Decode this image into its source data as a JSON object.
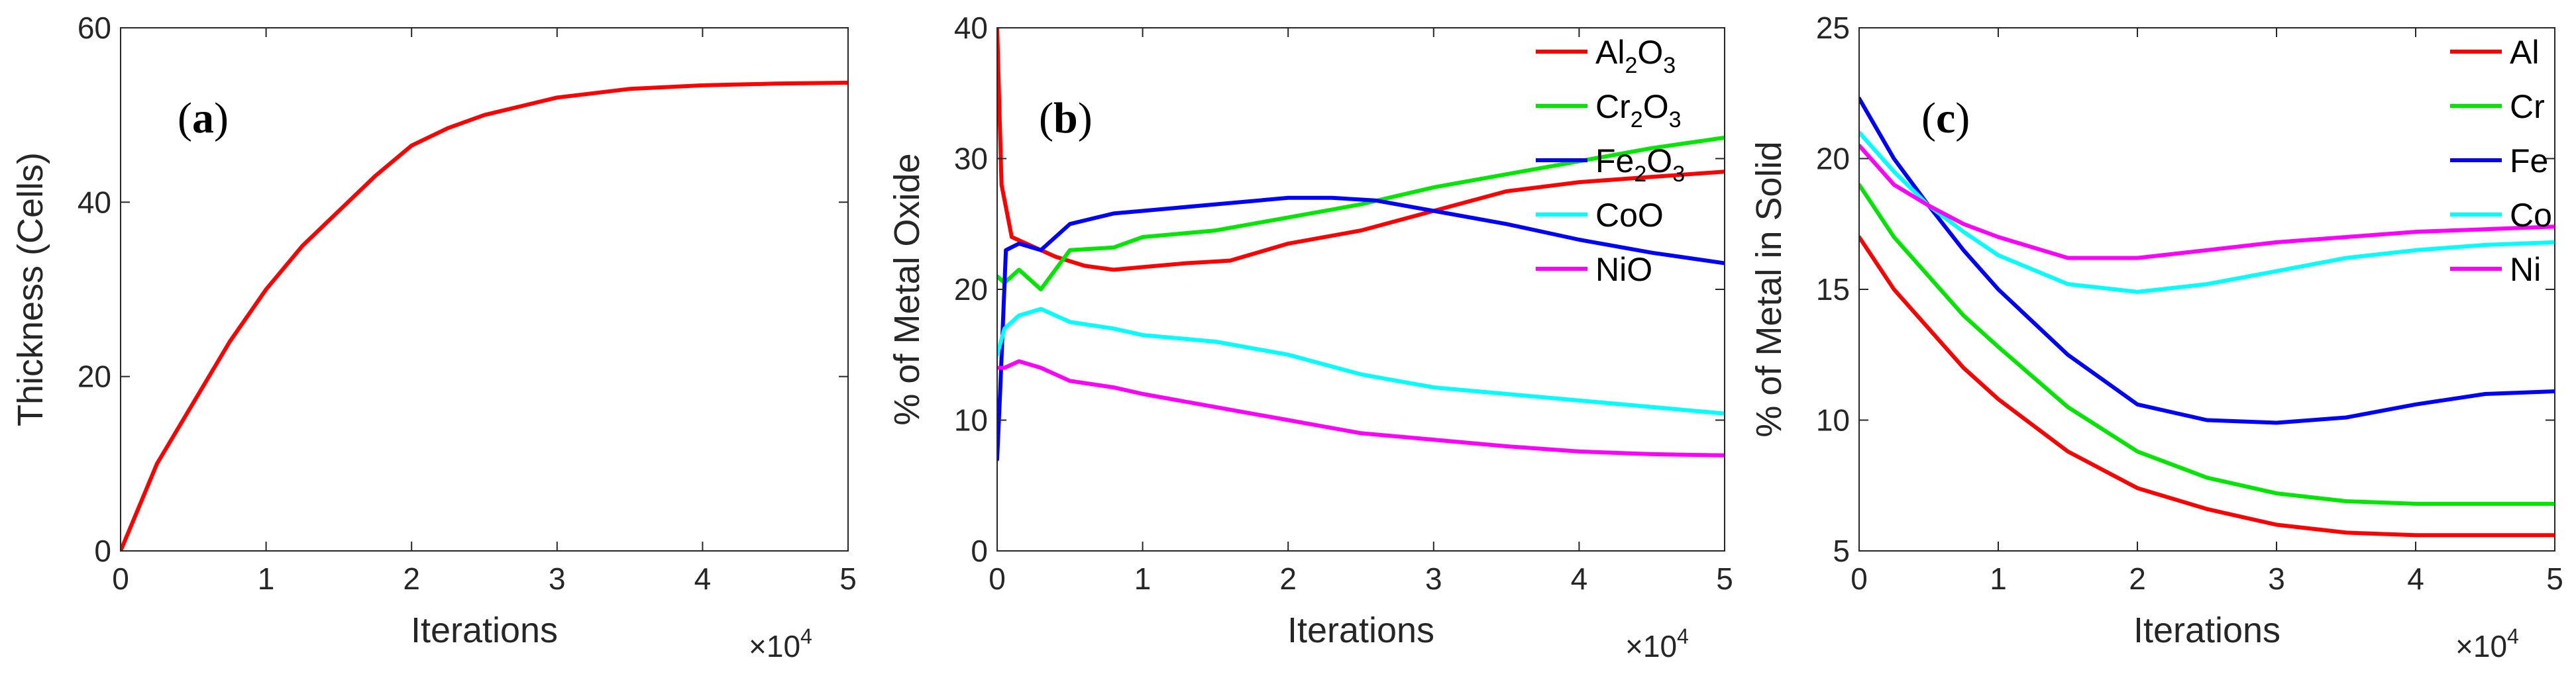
{
  "chart_data": [
    {
      "type": "line",
      "panel_label": "a",
      "title": "",
      "xlabel": "Iterations",
      "ylabel": "Thickness (Cells)",
      "x_exponent": {
        "base": "×10",
        "power": "4"
      },
      "xlim": [
        0,
        5
      ],
      "ylim": [
        0,
        60
      ],
      "x_ticks": [
        0,
        1,
        2,
        3,
        4,
        5
      ],
      "y_ticks": [
        0,
        20,
        40,
        60
      ],
      "legend": [],
      "series": [
        {
          "name": "Thickness",
          "color": "#ff0000",
          "x": [
            0,
            0.1,
            0.25,
            0.5,
            0.75,
            1.0,
            1.25,
            1.5,
            1.75,
            2.0,
            2.25,
            2.5,
            2.75,
            3.0,
            3.25,
            3.5,
            4.0,
            4.5,
            5.0
          ],
          "y": [
            0,
            4,
            10,
            17,
            24,
            30,
            35,
            39,
            43,
            46.5,
            48.5,
            50,
            51,
            52,
            52.5,
            53,
            53.4,
            53.6,
            53.7
          ]
        }
      ]
    },
    {
      "type": "line",
      "panel_label": "b",
      "title": "",
      "xlabel": "Iterations",
      "ylabel": "% of Metal Oxide",
      "x_exponent": {
        "base": "×10",
        "power": "4"
      },
      "xlim": [
        0,
        5
      ],
      "ylim": [
        0,
        40
      ],
      "x_ticks": [
        0,
        1,
        2,
        3,
        4,
        5
      ],
      "y_ticks": [
        0,
        10,
        20,
        30,
        40
      ],
      "legend": [
        {
          "text": "Al",
          "sub1": "2",
          "text2": "O",
          "sub2": "3",
          "color": "#ff0000"
        },
        {
          "text": "Cr",
          "sub1": "2",
          "text2": "O",
          "sub2": "3",
          "color": "#00e600"
        },
        {
          "text": "Fe",
          "sub1": "2",
          "text2": "O",
          "sub2": "3",
          "color": "#0000ff"
        },
        {
          "text": "CoO",
          "sub1": "",
          "text2": "",
          "sub2": "",
          "color": "#00ffff"
        },
        {
          "text": "NiO",
          "sub1": "",
          "text2": "",
          "sub2": "",
          "color": "#ff00ff"
        }
      ],
      "series": [
        {
          "name": "Al2O3",
          "color": "#ff0000",
          "x": [
            0,
            0.03,
            0.1,
            0.2,
            0.4,
            0.6,
            0.8,
            1.0,
            1.3,
            1.6,
            2.0,
            2.5,
            3.0,
            3.5,
            4.0,
            4.5,
            5.0
          ],
          "y": [
            40,
            28,
            24,
            23.5,
            22.5,
            21.8,
            21.5,
            21.7,
            22,
            22.2,
            23.5,
            24.5,
            26,
            27.5,
            28.2,
            28.6,
            29
          ]
        },
        {
          "name": "Cr2O3",
          "color": "#00e600",
          "x": [
            0,
            0.05,
            0.15,
            0.3,
            0.5,
            0.8,
            1.0,
            1.5,
            2.0,
            2.5,
            3.0,
            3.5,
            4.0,
            4.5,
            5.0
          ],
          "y": [
            21,
            20.5,
            21.5,
            20,
            23,
            23.2,
            24,
            24.5,
            25.5,
            26.5,
            27.8,
            28.8,
            29.8,
            30.8,
            31.6
          ]
        },
        {
          "name": "Fe2O3",
          "color": "#0000ff",
          "x": [
            0,
            0.02,
            0.06,
            0.15,
            0.3,
            0.5,
            0.8,
            1.0,
            1.5,
            2.0,
            2.3,
            2.6,
            3.0,
            3.5,
            4.0,
            4.5,
            5.0
          ],
          "y": [
            7,
            12,
            23,
            23.5,
            23,
            25,
            25.8,
            26,
            26.5,
            27,
            27,
            26.8,
            26,
            25,
            23.8,
            22.8,
            22
          ]
        },
        {
          "name": "CoO",
          "color": "#00ffff",
          "x": [
            0,
            0.05,
            0.15,
            0.3,
            0.5,
            0.8,
            1.0,
            1.5,
            2.0,
            2.5,
            3.0,
            3.5,
            4.0,
            4.5,
            5.0
          ],
          "y": [
            15,
            17,
            18,
            18.5,
            17.5,
            17,
            16.5,
            16,
            15,
            13.5,
            12.5,
            12,
            11.5,
            11,
            10.5
          ]
        },
        {
          "name": "NiO",
          "color": "#ff00ff",
          "x": [
            0,
            0.05,
            0.15,
            0.3,
            0.5,
            0.8,
            1.0,
            1.5,
            2.0,
            2.5,
            3.0,
            3.5,
            4.0,
            4.5,
            5.0
          ],
          "y": [
            14,
            14,
            14.5,
            14,
            13,
            12.5,
            12,
            11,
            10,
            9,
            8.5,
            8,
            7.6,
            7.4,
            7.3
          ]
        }
      ]
    },
    {
      "type": "line",
      "panel_label": "c",
      "title": "",
      "xlabel": "Iterations",
      "ylabel": "% of Metal in Solid",
      "x_exponent": {
        "base": "×10",
        "power": "4"
      },
      "xlim": [
        0,
        5
      ],
      "ylim": [
        5,
        25
      ],
      "x_ticks": [
        0,
        1,
        2,
        3,
        4,
        5
      ],
      "y_ticks": [
        5,
        10,
        15,
        20,
        25
      ],
      "legend": [
        {
          "text": "Al",
          "sub1": "",
          "text2": "",
          "sub2": "",
          "color": "#ff0000"
        },
        {
          "text": "Cr",
          "sub1": "",
          "text2": "",
          "sub2": "",
          "color": "#00e600"
        },
        {
          "text": "Fe",
          "sub1": "",
          "text2": "",
          "sub2": "",
          "color": "#0000ff"
        },
        {
          "text": "Co",
          "sub1": "",
          "text2": "",
          "sub2": "",
          "color": "#00ffff"
        },
        {
          "text": "Ni",
          "sub1": "",
          "text2": "",
          "sub2": "",
          "color": "#ff00ff"
        }
      ],
      "series": [
        {
          "name": "Al",
          "color": "#ff0000",
          "x": [
            0,
            0.25,
            0.5,
            0.75,
            1.0,
            1.5,
            2.0,
            2.5,
            3.0,
            3.5,
            4.0,
            4.5,
            5.0
          ],
          "y": [
            17,
            15,
            13.5,
            12,
            10.8,
            8.8,
            7.4,
            6.6,
            6.0,
            5.7,
            5.6,
            5.6,
            5.6
          ]
        },
        {
          "name": "Cr",
          "color": "#00e600",
          "x": [
            0,
            0.25,
            0.5,
            0.75,
            1.0,
            1.5,
            2.0,
            2.5,
            3.0,
            3.5,
            4.0,
            4.5,
            5.0
          ],
          "y": [
            19,
            17,
            15.5,
            14,
            12.8,
            10.5,
            8.8,
            7.8,
            7.2,
            6.9,
            6.8,
            6.8,
            6.8
          ]
        },
        {
          "name": "Fe",
          "color": "#0000ff",
          "x": [
            0,
            0.25,
            0.5,
            0.75,
            1.0,
            1.5,
            2.0,
            2.5,
            3.0,
            3.5,
            4.0,
            4.5,
            5.0
          ],
          "y": [
            22.3,
            20,
            18.2,
            16.5,
            15,
            12.5,
            10.6,
            10,
            9.9,
            10.1,
            10.6,
            11,
            11.1
          ]
        },
        {
          "name": "Co",
          "color": "#00ffff",
          "x": [
            0,
            0.25,
            0.5,
            0.75,
            1.0,
            1.5,
            2.0,
            2.5,
            3.0,
            3.5,
            4.0,
            4.5,
            5.0
          ],
          "y": [
            21,
            19.5,
            18.2,
            17.2,
            16.3,
            15.2,
            14.9,
            15.2,
            15.7,
            16.2,
            16.5,
            16.7,
            16.8
          ]
        },
        {
          "name": "Ni",
          "color": "#ff00ff",
          "x": [
            0,
            0.25,
            0.5,
            0.75,
            1.0,
            1.5,
            2.0,
            2.5,
            3.0,
            3.5,
            4.0,
            4.5,
            5.0
          ],
          "y": [
            20.5,
            19,
            18.2,
            17.5,
            17,
            16.2,
            16.2,
            16.5,
            16.8,
            17,
            17.2,
            17.3,
            17.4
          ]
        }
      ]
    }
  ]
}
